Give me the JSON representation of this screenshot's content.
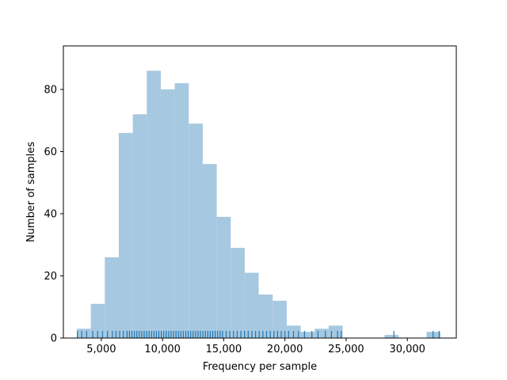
{
  "chart_data": {
    "type": "bar",
    "title": "",
    "xlabel": "Frequency per sample",
    "ylabel": "Number of samples",
    "xlim": [
      1900,
      34000
    ],
    "ylim": [
      0,
      94
    ],
    "grid": false,
    "bar_color": "#a6c8e0",
    "rug_color": "#1f77b4",
    "bins": [
      {
        "x0": 3000,
        "x1": 4143,
        "count": 3
      },
      {
        "x0": 4143,
        "x1": 5286,
        "count": 11
      },
      {
        "x0": 5286,
        "x1": 6429,
        "count": 26
      },
      {
        "x0": 6429,
        "x1": 7571,
        "count": 66
      },
      {
        "x0": 7571,
        "x1": 8714,
        "count": 72
      },
      {
        "x0": 8714,
        "x1": 9857,
        "count": 86
      },
      {
        "x0": 9857,
        "x1": 11000,
        "count": 80
      },
      {
        "x0": 11000,
        "x1": 12143,
        "count": 82
      },
      {
        "x0": 12143,
        "x1": 13286,
        "count": 69
      },
      {
        "x0": 13286,
        "x1": 14429,
        "count": 56
      },
      {
        "x0": 14429,
        "x1": 15571,
        "count": 39
      },
      {
        "x0": 15571,
        "x1": 16714,
        "count": 29
      },
      {
        "x0": 16714,
        "x1": 17857,
        "count": 21
      },
      {
        "x0": 17857,
        "x1": 19000,
        "count": 14
      },
      {
        "x0": 19000,
        "x1": 20143,
        "count": 12
      },
      {
        "x0": 20143,
        "x1": 21286,
        "count": 4
      },
      {
        "x0": 21286,
        "x1": 22429,
        "count": 2
      },
      {
        "x0": 22429,
        "x1": 23571,
        "count": 3
      },
      {
        "x0": 23571,
        "x1": 24714,
        "count": 4
      },
      {
        "x0": 28143,
        "x1": 29286,
        "count": 1
      },
      {
        "x0": 31571,
        "x1": 32714,
        "count": 2
      }
    ],
    "xticks": [
      {
        "value": 5000,
        "label": "5,000"
      },
      {
        "value": 10000,
        "label": "10,000"
      },
      {
        "value": 15000,
        "label": "15,000"
      },
      {
        "value": 20000,
        "label": "20,000"
      },
      {
        "value": 25000,
        "label": "25,000"
      },
      {
        "value": 30000,
        "label": "30,000"
      }
    ],
    "yticks": [
      {
        "value": 0,
        "label": "0"
      },
      {
        "value": 20,
        "label": "20"
      },
      {
        "value": 40,
        "label": "40"
      },
      {
        "value": 60,
        "label": "60"
      },
      {
        "value": 80,
        "label": "80"
      }
    ],
    "rug": [
      3050,
      3400,
      3800,
      4300,
      4700,
      5100,
      5500,
      5900,
      6200,
      6500,
      6800,
      7100,
      7300,
      7500,
      7700,
      7900,
      8100,
      8300,
      8500,
      8700,
      8900,
      9100,
      9300,
      9500,
      9700,
      9900,
      10100,
      10300,
      10500,
      10700,
      10900,
      11100,
      11300,
      11500,
      11700,
      11900,
      12100,
      12300,
      12500,
      12700,
      12900,
      13100,
      13300,
      13500,
      13700,
      13900,
      14100,
      14300,
      14500,
      14700,
      14900,
      15200,
      15500,
      15800,
      16100,
      16400,
      16700,
      17000,
      17300,
      17600,
      17900,
      18200,
      18500,
      18800,
      19100,
      19400,
      19700,
      20000,
      20300,
      20700,
      21100,
      21600,
      22200,
      22700,
      23300,
      23800,
      24300,
      24600,
      28900,
      32100,
      32600
    ]
  }
}
